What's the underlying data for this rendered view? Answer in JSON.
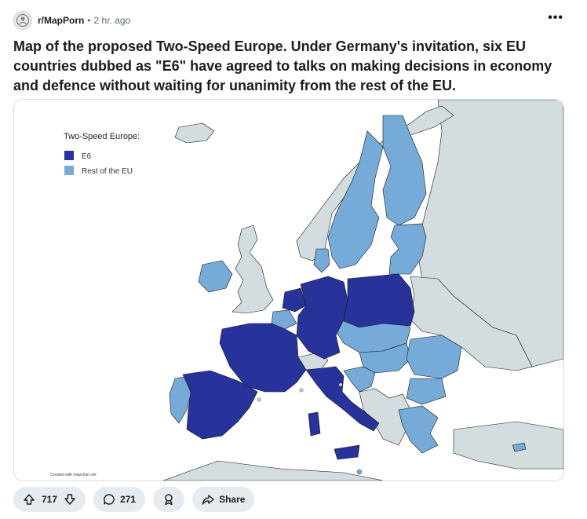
{
  "post": {
    "subreddit": "r/MapPorn",
    "separator": "•",
    "time": "2 hr. ago",
    "more_label": "•••",
    "title": "Map of the proposed Two-Speed Europe. Under Germany's invitation, six EU countries dubbed as \"E6\" have agreed to talks on making decisions in economy and defence without waiting for unanimity from the rest of the EU."
  },
  "map": {
    "legend_title": "Two-Speed Europe:",
    "legend_items": [
      {
        "label": "E6",
        "color": "#27329a"
      },
      {
        "label": "Rest of the EU",
        "color": "#76aad8"
      }
    ],
    "credit": "Created with mapchart.net",
    "colors": {
      "sea": "#ffffff",
      "non_eu": "#d3dddf",
      "border": "#1a1a1a"
    }
  },
  "actions": {
    "upvotes": "717",
    "comments": "271",
    "share": "Share"
  },
  "icons": [
    "upvote-icon",
    "downvote-icon",
    "comment-icon",
    "award-icon",
    "share-icon",
    "more-icon",
    "avatar-icon"
  ]
}
